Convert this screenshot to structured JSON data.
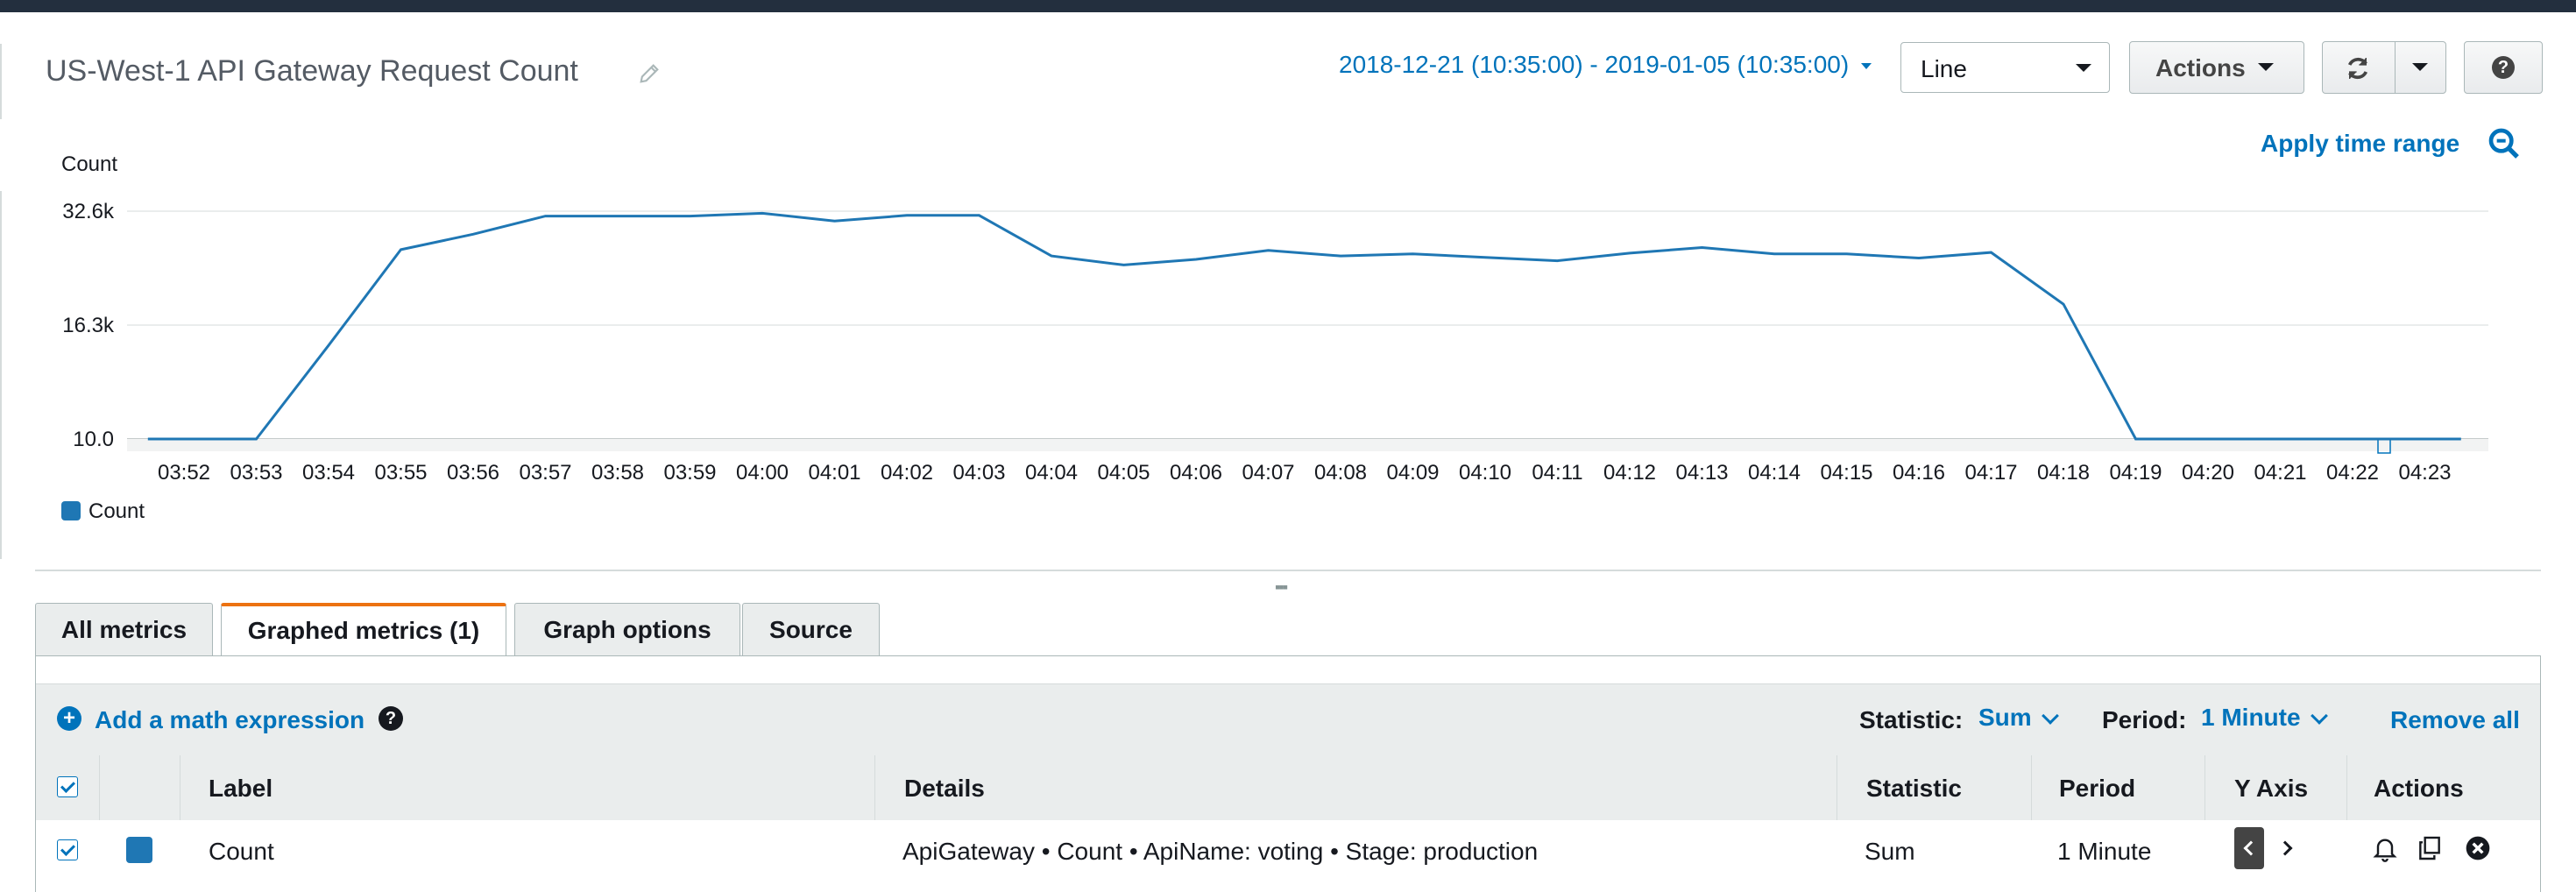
{
  "header": {
    "title": "US-West-1 API Gateway Request Count",
    "time_range": "2018-12-21 (10:35:00) - 2019-01-05 (10:35:00)",
    "chart_type_select": "Line",
    "actions_label": "Actions",
    "refresh_icon": "refresh-icon",
    "help_icon": "help-icon"
  },
  "chart_header": {
    "apply_time_range": "Apply time range",
    "zoom_icon": "zoom-icon"
  },
  "chart_data": {
    "type": "line",
    "ylabel": "Count",
    "yticks": [
      "32.6k",
      "16.3k",
      "10.0"
    ],
    "x": [
      "03:52",
      "03:53",
      "03:54",
      "03:55",
      "03:56",
      "03:57",
      "03:58",
      "03:59",
      "04:00",
      "04:01",
      "04:02",
      "04:03",
      "04:04",
      "04:05",
      "04:06",
      "04:07",
      "04:08",
      "04:09",
      "04:10",
      "04:11",
      "04:12",
      "04:13",
      "04:14",
      "04:15",
      "04:16",
      "04:17",
      "04:18",
      "04:19",
      "04:20",
      "04:21",
      "04:22",
      "04:23"
    ],
    "series": [
      {
        "name": "Count",
        "color": "#1f77b4",
        "points": [
          [
            "03:51:30",
            10
          ],
          [
            "03:53",
            10
          ],
          [
            "03:54",
            13400
          ],
          [
            "03:55",
            27100
          ],
          [
            "03:56",
            29300
          ],
          [
            "03:57",
            31900
          ],
          [
            "03:58",
            31900
          ],
          [
            "03:59",
            31900
          ],
          [
            "04:00",
            32300
          ],
          [
            "04:01",
            31200
          ],
          [
            "04:02",
            32000
          ],
          [
            "04:03",
            32000
          ],
          [
            "04:04",
            26200
          ],
          [
            "04:05",
            24900
          ],
          [
            "04:06",
            25700
          ],
          [
            "04:07",
            27000
          ],
          [
            "04:08",
            26200
          ],
          [
            "04:09",
            26500
          ],
          [
            "04:10",
            26000
          ],
          [
            "04:11",
            25500
          ],
          [
            "04:12",
            26600
          ],
          [
            "04:13",
            27400
          ],
          [
            "04:14",
            26500
          ],
          [
            "04:15",
            26500
          ],
          [
            "04:16",
            25900
          ],
          [
            "04:17",
            26700
          ],
          [
            "04:18",
            19300
          ],
          [
            "04:19",
            10
          ],
          [
            "04:20",
            10
          ],
          [
            "04:21",
            10
          ],
          [
            "04:22",
            10
          ],
          [
            "04:23",
            10
          ],
          [
            "04:23:30",
            10
          ]
        ]
      }
    ],
    "legend": [
      "Count"
    ],
    "legend_position": "bottom-left",
    "grid": true
  },
  "tabs": [
    {
      "label": "All metrics",
      "active": false
    },
    {
      "label": "Graphed metrics (1)",
      "active": true
    },
    {
      "label": "Graph options",
      "active": false
    },
    {
      "label": "Source",
      "active": false
    }
  ],
  "toolbar": {
    "add_math": "Add a math expression",
    "statistic_label": "Statistic:",
    "statistic_value": "Sum",
    "period_label": "Period:",
    "period_value": "1 Minute",
    "remove_all": "Remove all"
  },
  "table": {
    "columns": [
      "Label",
      "Details",
      "Statistic",
      "Period",
      "Y Axis",
      "Actions"
    ],
    "rows": [
      {
        "checked": true,
        "color": "#1f77b4",
        "label": "Count",
        "details": "ApiGateway • Count • ApiName: voting • Stage: production",
        "statistic": "Sum",
        "period": "1 Minute",
        "y_axis": "left",
        "actions": [
          "bell-icon",
          "copy-icon",
          "close-circle-icon"
        ]
      }
    ]
  }
}
